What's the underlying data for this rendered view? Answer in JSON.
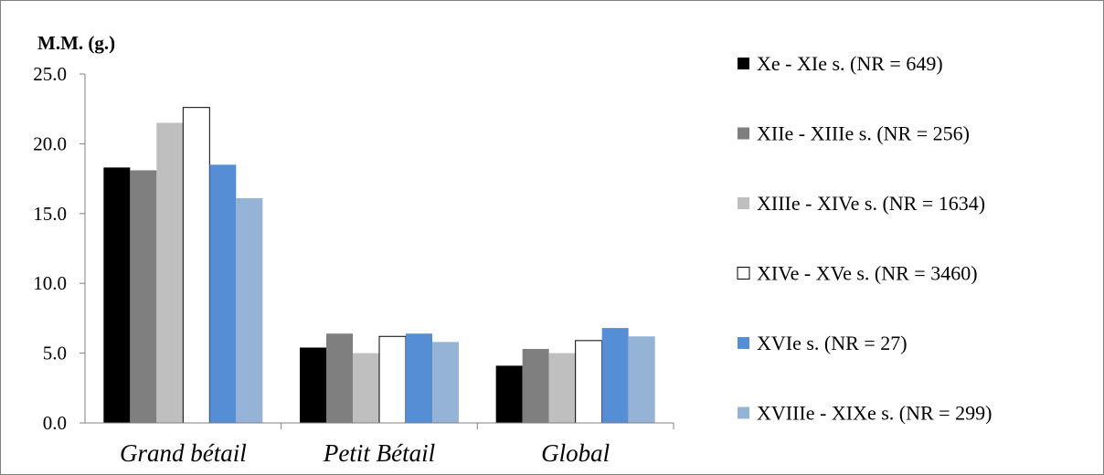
{
  "chart_data": {
    "type": "bar",
    "ylabel": "M.M. (g.)",
    "ylim": [
      0,
      25
    ],
    "yticks": [
      0,
      5,
      10,
      15,
      20,
      25
    ],
    "ytick_labels": [
      "0.0",
      "5.0",
      "10.0",
      "15.0",
      "20.0",
      "25.0"
    ],
    "categories": [
      "Grand bétail",
      "Petit Bétail",
      "Global"
    ],
    "legend_position": "right",
    "grid": false,
    "series": [
      {
        "name": "Xe - XIe s. (NR = 649)",
        "color": "#000000",
        "values": [
          18.3,
          5.4,
          4.1
        ]
      },
      {
        "name": "XIIe - XIIIe s. (NR = 256)",
        "color": "#7f7f7f",
        "values": [
          18.1,
          6.4,
          5.3
        ]
      },
      {
        "name": "XIIIe - XIVe s. (NR = 1634)",
        "color": "#bfbfbf",
        "values": [
          21.5,
          5.0,
          5.0
        ]
      },
      {
        "name": "XIVe - XVe s. (NR = 3460)",
        "color": "#ffffff",
        "values": [
          22.6,
          6.2,
          5.9
        ]
      },
      {
        "name": "XVIe s. (NR = 27)",
        "color": "#558ed5",
        "values": [
          18.5,
          6.4,
          6.8
        ]
      },
      {
        "name": "XVIIIe - XIXe s. (NR = 299)",
        "color": "#95b3d7",
        "values": [
          16.1,
          5.8,
          6.2
        ]
      }
    ]
  }
}
